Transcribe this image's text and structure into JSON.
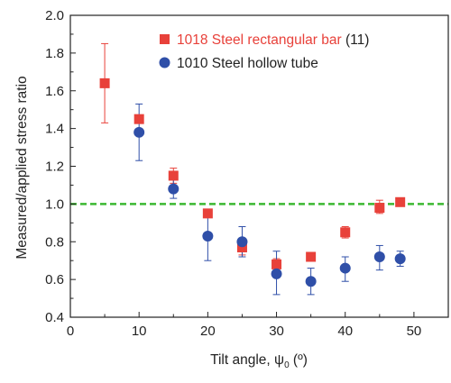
{
  "chart_data": {
    "type": "scatter",
    "xlabel_main": "Tilt angle, ψ",
    "xlabel_sub": "0",
    "xlabel_unit": " (º)",
    "ylabel": "Measured/applied stress ratio",
    "xlim": [
      0,
      55
    ],
    "ylim": [
      0.4,
      2.0
    ],
    "xticks": [
      0,
      10,
      20,
      30,
      40,
      50
    ],
    "yticks": [
      0.4,
      0.6,
      0.8,
      1.0,
      1.2,
      1.4,
      1.6,
      1.8,
      2.0
    ],
    "xtick_labels": [
      "0",
      "10",
      "20",
      "30",
      "40",
      "50"
    ],
    "ytick_labels": [
      "0.4",
      "0.6",
      "0.8",
      "1.0",
      "1.2",
      "1.4",
      "1.6",
      "1.8",
      "2.0"
    ],
    "reference_line": {
      "y": 1.0,
      "style": "dashed",
      "color": "#3cb832"
    },
    "grid": false,
    "legend_position": "top-right",
    "series": [
      {
        "name": "1018 Steel rectangular bar",
        "name_suffix": " (11)",
        "marker": "square",
        "color": "#e8413a",
        "text_color": "#e8413a",
        "points": [
          {
            "x": 5,
            "y": 1.64,
            "err_low": 1.43,
            "err_high": 1.85
          },
          {
            "x": 10,
            "y": 1.45,
            "err_low": 1.43,
            "err_high": 1.47
          },
          {
            "x": 15,
            "y": 1.15,
            "err_low": 1.11,
            "err_high": 1.19
          },
          {
            "x": 20,
            "y": 0.95,
            "err_low": 0.95,
            "err_high": 0.95
          },
          {
            "x": 25,
            "y": 0.77,
            "err_low": 0.73,
            "err_high": 0.81
          },
          {
            "x": 30,
            "y": 0.68,
            "err_low": 0.65,
            "err_high": 0.71
          },
          {
            "x": 35,
            "y": 0.72,
            "err_low": 0.72,
            "err_high": 0.72
          },
          {
            "x": 40,
            "y": 0.85,
            "err_low": 0.82,
            "err_high": 0.88
          },
          {
            "x": 45,
            "y": 0.98,
            "err_low": 0.95,
            "err_high": 1.02
          },
          {
            "x": 48,
            "y": 1.01,
            "err_low": 1.01,
            "err_high": 1.01
          }
        ]
      },
      {
        "name": "1010 Steel hollow tube",
        "name_suffix": "",
        "marker": "circle",
        "color": "#2f4fa8",
        "text_color": "#2f4fa8",
        "points": [
          {
            "x": 10,
            "y": 1.38,
            "err_low": 1.23,
            "err_high": 1.53
          },
          {
            "x": 15,
            "y": 1.08,
            "err_low": 1.03,
            "err_high": 1.13
          },
          {
            "x": 20,
            "y": 0.83,
            "err_low": 0.7,
            "err_high": 0.96
          },
          {
            "x": 25,
            "y": 0.8,
            "err_low": 0.72,
            "err_high": 0.88
          },
          {
            "x": 30,
            "y": 0.63,
            "err_low": 0.52,
            "err_high": 0.75
          },
          {
            "x": 35,
            "y": 0.59,
            "err_low": 0.52,
            "err_high": 0.66
          },
          {
            "x": 40,
            "y": 0.66,
            "err_low": 0.59,
            "err_high": 0.72
          },
          {
            "x": 45,
            "y": 0.72,
            "err_low": 0.65,
            "err_high": 0.78
          },
          {
            "x": 48,
            "y": 0.71,
            "err_low": 0.67,
            "err_high": 0.75
          }
        ]
      }
    ]
  }
}
